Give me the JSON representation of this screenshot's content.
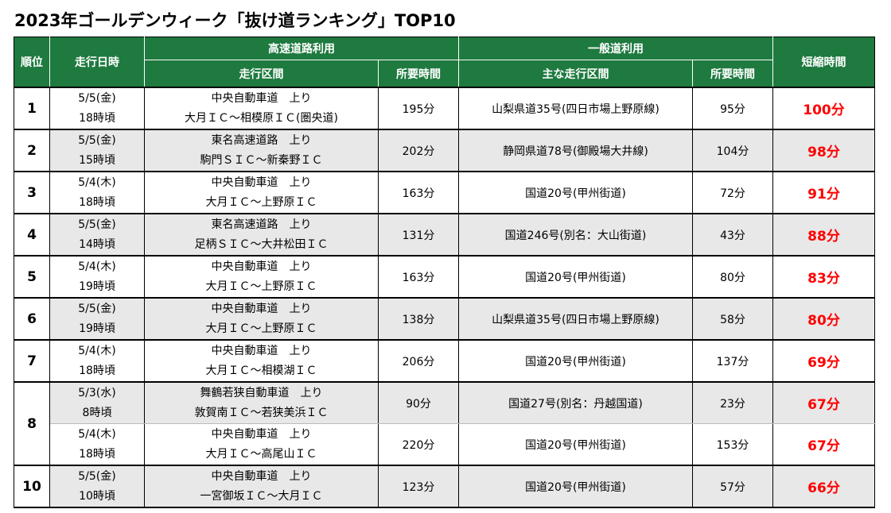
{
  "title": "2023年ゴールデンウィーク「抜け道ランキング」TOP10",
  "headers": {
    "rank": "順位",
    "datetime": "走行日時",
    "highway_group": "高速道路利用",
    "highway_section": "走行区間",
    "highway_time": "所要時間",
    "general_group": "一般道利用",
    "general_section": "主な走行区間",
    "general_time": "所要時間",
    "saved": "短縮時間"
  },
  "rows": [
    {
      "rank": "1",
      "date": "5/5(金)",
      "time": "18時頃",
      "hw_road": "中央自動車道　上り",
      "hw_section": "大月ＩＣ～相模原ＩＣ(圏央道)",
      "hw_minutes": "195分",
      "gen_section": "山梨県道35号(四日市場上野原線)",
      "gen_minutes": "95分",
      "saved": "100分"
    },
    {
      "rank": "2",
      "date": "5/5(金)",
      "time": "15時頃",
      "hw_road": "東名高速道路　上り",
      "hw_section": "駒門ＳＩＣ～新秦野ＩＣ",
      "hw_minutes": "202分",
      "gen_section": "静岡県道78号(御殿場大井線)",
      "gen_minutes": "104分",
      "saved": "98分"
    },
    {
      "rank": "3",
      "date": "5/4(木)",
      "time": "18時頃",
      "hw_road": "中央自動車道　上り",
      "hw_section": "大月ＩＣ～上野原ＩＣ",
      "hw_minutes": "163分",
      "gen_section": "国道20号(甲州街道)",
      "gen_minutes": "72分",
      "saved": "91分"
    },
    {
      "rank": "4",
      "date": "5/5(金)",
      "time": "14時頃",
      "hw_road": "東名高速道路　上り",
      "hw_section": "足柄ＳＩＣ～大井松田ＩＣ",
      "hw_minutes": "131分",
      "gen_section": "国道246号(別名：大山街道)",
      "gen_minutes": "43分",
      "saved": "88分"
    },
    {
      "rank": "5",
      "date": "5/4(木)",
      "time": "19時頃",
      "hw_road": "中央自動車道　上り",
      "hw_section": "大月ＩＣ～上野原ＩＣ",
      "hw_minutes": "163分",
      "gen_section": "国道20号(甲州街道)",
      "gen_minutes": "80分",
      "saved": "83分"
    },
    {
      "rank": "6",
      "date": "5/5(金)",
      "time": "19時頃",
      "hw_road": "中央自動車道　上り",
      "hw_section": "大月ＩＣ～上野原ＩＣ",
      "hw_minutes": "138分",
      "gen_section": "山梨県道35号(四日市場上野原線)",
      "gen_minutes": "58分",
      "saved": "80分"
    },
    {
      "rank": "7",
      "date": "5/4(木)",
      "time": "18時頃",
      "hw_road": "中央自動車道　上り",
      "hw_section": "大月ＩＣ～相模湖ＩＣ",
      "hw_minutes": "206分",
      "gen_section": "国道20号(甲州街道)",
      "gen_minutes": "137分",
      "saved": "69分"
    },
    {
      "rank": "8",
      "date": "5/3(水)",
      "time": "8時頃",
      "hw_road": "舞鶴若狭自動車道　上り",
      "hw_section": "敦賀南ＩＣ～若狭美浜ＩＣ",
      "hw_minutes": "90分",
      "gen_section": "国道27号(別名：丹越国道)",
      "gen_minutes": "23分",
      "saved": "67分"
    },
    {
      "rank": "",
      "date": "5/4(木)",
      "time": "18時頃",
      "hw_road": "中央自動車道　上り",
      "hw_section": "大月ＩＣ～高尾山ＩＣ",
      "hw_minutes": "220分",
      "gen_section": "国道20号(甲州街道)",
      "gen_minutes": "153分",
      "saved": "67分"
    },
    {
      "rank": "10",
      "date": "5/5(金)",
      "time": "10時頃",
      "hw_road": "中央自動車道　上り",
      "hw_section": "一宮御坂ＩＣ～大月ＩＣ",
      "hw_minutes": "123分",
      "gen_section": "国道20号(甲州街道)",
      "gen_minutes": "57分",
      "saved": "66分"
    }
  ],
  "colors": {
    "header_bg": "#1e7a3f",
    "alt_row_bg": "#e8e8e8",
    "saved_text": "#ff0000"
  }
}
